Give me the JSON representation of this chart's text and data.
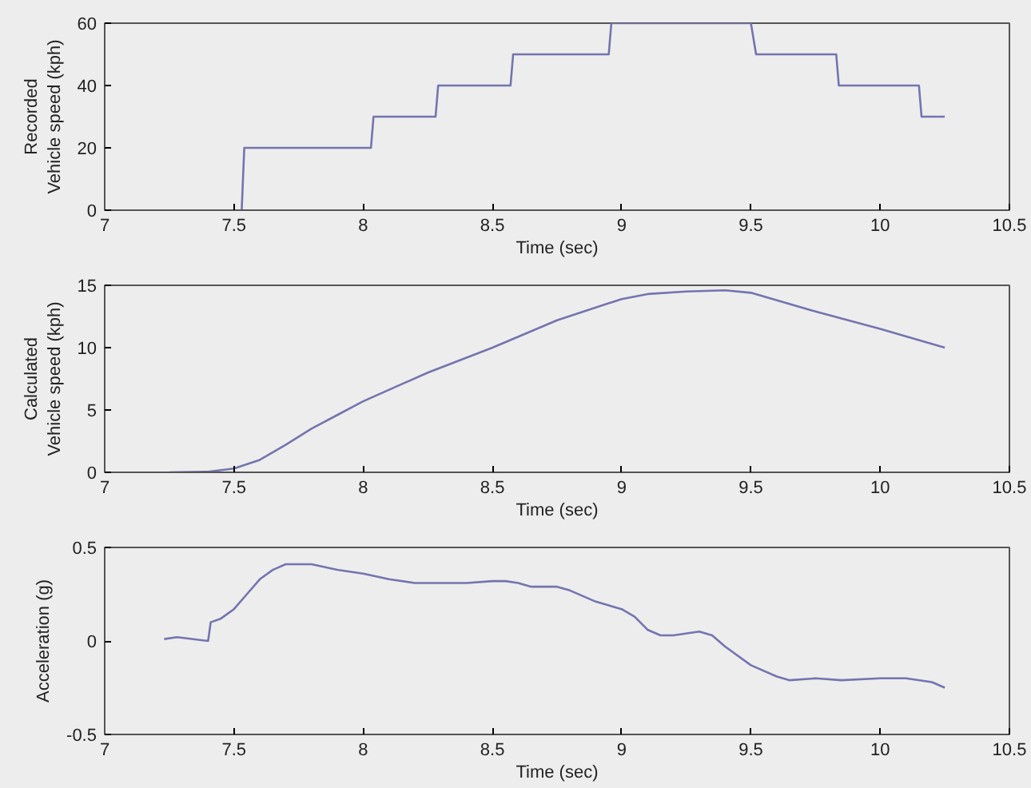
{
  "chart_data": [
    {
      "type": "line",
      "xlabel": "Time (sec)",
      "ylabel": "Recorded\nVehicle speed (kph)",
      "color": "#7474b0",
      "grid": false,
      "x": [
        7.53,
        7.54,
        8.03,
        8.04,
        8.28,
        8.29,
        8.57,
        8.58,
        8.95,
        8.96,
        9.5,
        9.52,
        9.83,
        9.84,
        10.15,
        10.16,
        10.25
      ],
      "values": [
        0,
        20,
        20,
        30,
        30,
        40,
        40,
        50,
        50,
        60,
        60,
        50,
        50,
        40,
        40,
        30,
        30
      ],
      "xlim": [
        7,
        10.5
      ],
      "ylim": [
        0,
        60
      ],
      "xticks": [
        7,
        7.5,
        8,
        8.5,
        9,
        9.5,
        10,
        10.5
      ],
      "yticks": [
        0,
        20,
        40,
        60
      ]
    },
    {
      "type": "line",
      "xlabel": "Time (sec)",
      "ylabel": "Calculated\nVehicle speed (kph)",
      "color": "#7474b0",
      "grid": false,
      "x": [
        7.25,
        7.4,
        7.5,
        7.6,
        7.7,
        7.8,
        7.9,
        8,
        8.25,
        8.5,
        8.75,
        9,
        9.1,
        9.25,
        9.4,
        9.5,
        9.75,
        10,
        10.25
      ],
      "values": [
        0,
        0.05,
        0.3,
        1,
        2.2,
        3.5,
        4.6,
        5.7,
        8,
        10,
        12.2,
        13.9,
        14.3,
        14.5,
        14.6,
        14.4,
        12.9,
        11.5,
        10
      ],
      "xlim": [
        7,
        10.5
      ],
      "ylim": [
        0,
        15
      ],
      "xticks": [
        7,
        7.5,
        8,
        8.5,
        9,
        9.5,
        10,
        10.5
      ],
      "yticks": [
        0,
        5,
        10,
        15
      ]
    },
    {
      "type": "line",
      "xlabel": "Time (sec)",
      "ylabel": "Acceleration (g)",
      "color": "#7474b0",
      "grid": false,
      "x": [
        7.23,
        7.28,
        7.4,
        7.41,
        7.45,
        7.5,
        7.55,
        7.6,
        7.65,
        7.7,
        7.8,
        7.9,
        8,
        8.1,
        8.2,
        8.3,
        8.4,
        8.5,
        8.55,
        8.6,
        8.65,
        8.75,
        8.8,
        8.9,
        9,
        9.05,
        9.1,
        9.15,
        9.2,
        9.3,
        9.35,
        9.4,
        9.5,
        9.6,
        9.65,
        9.75,
        9.85,
        10,
        10.1,
        10.2,
        10.25
      ],
      "values": [
        0.01,
        0.02,
        0.0,
        0.1,
        0.12,
        0.17,
        0.25,
        0.33,
        0.38,
        0.41,
        0.41,
        0.38,
        0.36,
        0.33,
        0.31,
        0.31,
        0.31,
        0.32,
        0.32,
        0.31,
        0.29,
        0.29,
        0.27,
        0.21,
        0.17,
        0.13,
        0.06,
        0.03,
        0.03,
        0.05,
        0.03,
        -0.03,
        -0.13,
        -0.19,
        -0.21,
        -0.2,
        -0.21,
        -0.2,
        -0.2,
        -0.22,
        -0.25
      ],
      "xlim": [
        7,
        10.5
      ],
      "ylim": [
        -0.5,
        0.5
      ],
      "xticks": [
        7,
        7.5,
        8,
        8.5,
        9,
        9.5,
        10,
        10.5
      ],
      "yticks": [
        -0.5,
        0,
        0.5
      ]
    }
  ]
}
